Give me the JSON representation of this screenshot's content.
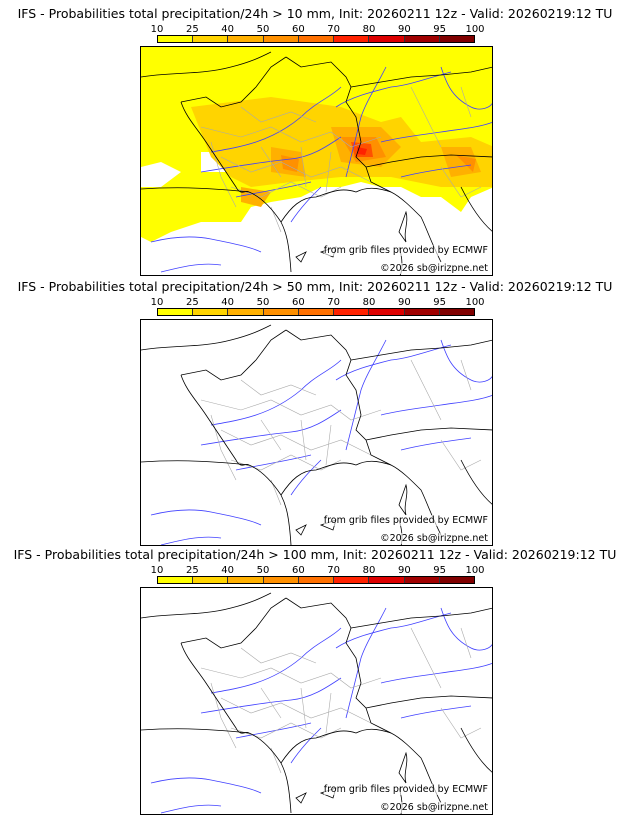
{
  "panels": [
    {
      "title": "IFS - Probabilities total precipitation/24h > 10 mm, Init: 20260211 12z - Valid: 20260219:12 TU",
      "has_precip": true
    },
    {
      "title": "IFS - Probabilities total precipitation/24h > 50 mm, Init: 20260211 12z - Valid: 20260219:12 TU",
      "has_precip": false
    },
    {
      "title": "IFS - Probabilities total precipitation/24h > 100 mm, Init: 20260211 12z - Valid: 20260219:12 TU",
      "has_precip": false
    }
  ],
  "legend": {
    "ticks": [
      "10",
      "25",
      "40",
      "50",
      "60",
      "70",
      "80",
      "90",
      "95",
      "100"
    ],
    "colors": [
      "#ffff00",
      "#ffd400",
      "#ffb000",
      "#ff9000",
      "#ff7000",
      "#ff2200",
      "#dd0000",
      "#a00000",
      "#800000",
      "#5a0000"
    ]
  },
  "credits": {
    "source": "from grib files provided by ECMWF",
    "copyright": "©2026 sb@irizpne.net"
  }
}
